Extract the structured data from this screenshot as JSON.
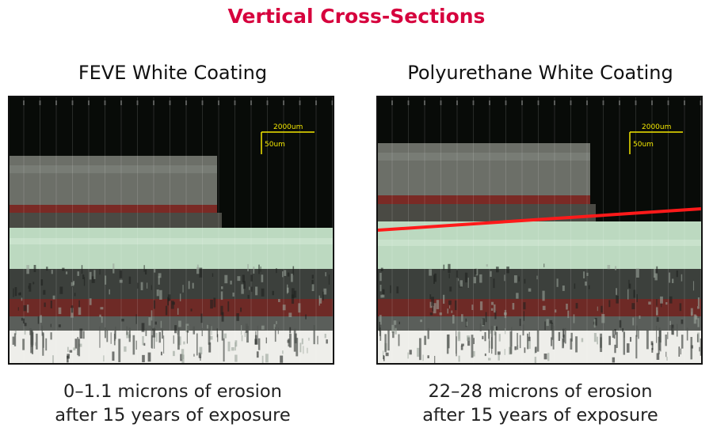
{
  "title": "Vertical Cross-Sections",
  "panels": [
    {
      "title": "FEVE White Coating",
      "scale_horizontal": "2000um",
      "scale_vertical": "50um",
      "caption_line1": "0–1.1 microns of erosion",
      "caption_line2": "after 15 years of exposure",
      "erosion_line": false
    },
    {
      "title": "Polyurethane White Coating",
      "scale_horizontal": "2000um",
      "scale_vertical": "50um",
      "caption_line1": "22–28 microns of erosion",
      "caption_line2": "after 15 years of exposure",
      "erosion_line": true,
      "erosion_line_color": "#ff1a1a"
    }
  ],
  "colors": {
    "title": "#d6003d",
    "scale_bar": "#f2e600",
    "background": "#080b08",
    "coating_gray": "#6c6f68",
    "red_band": "#7a2a25",
    "light_green": "#bcd9c0",
    "dark_gray": "#3c403c",
    "substrate": "#eeeeea"
  }
}
